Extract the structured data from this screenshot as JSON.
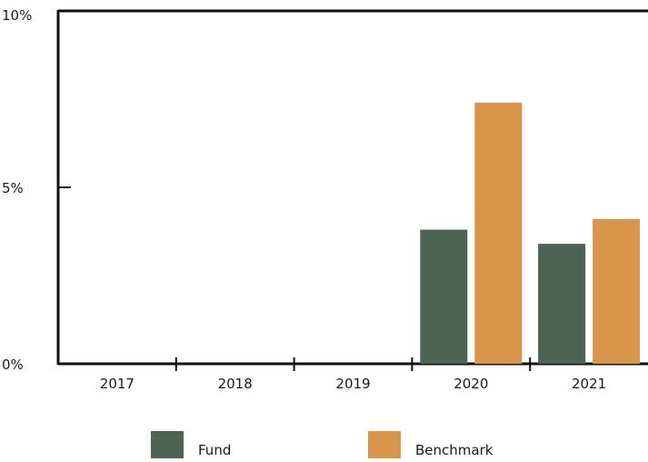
{
  "chart_data": {
    "type": "bar",
    "categories": [
      "2017",
      "2018",
      "2019",
      "2020",
      "2021"
    ],
    "series": [
      {
        "name": "Fund",
        "color": "#4a6355",
        "values": [
          null,
          null,
          null,
          3.8,
          3.4
        ]
      },
      {
        "name": "Benchmark",
        "color": "#d9964a",
        "values": [
          null,
          null,
          null,
          7.4,
          4.1
        ]
      }
    ],
    "y_ticks": [
      "0%",
      "5%",
      "10%"
    ],
    "y_tick_values": [
      0,
      5,
      10
    ],
    "ylim": [
      0,
      10
    ],
    "grid": false,
    "legend_position": "bottom"
  }
}
